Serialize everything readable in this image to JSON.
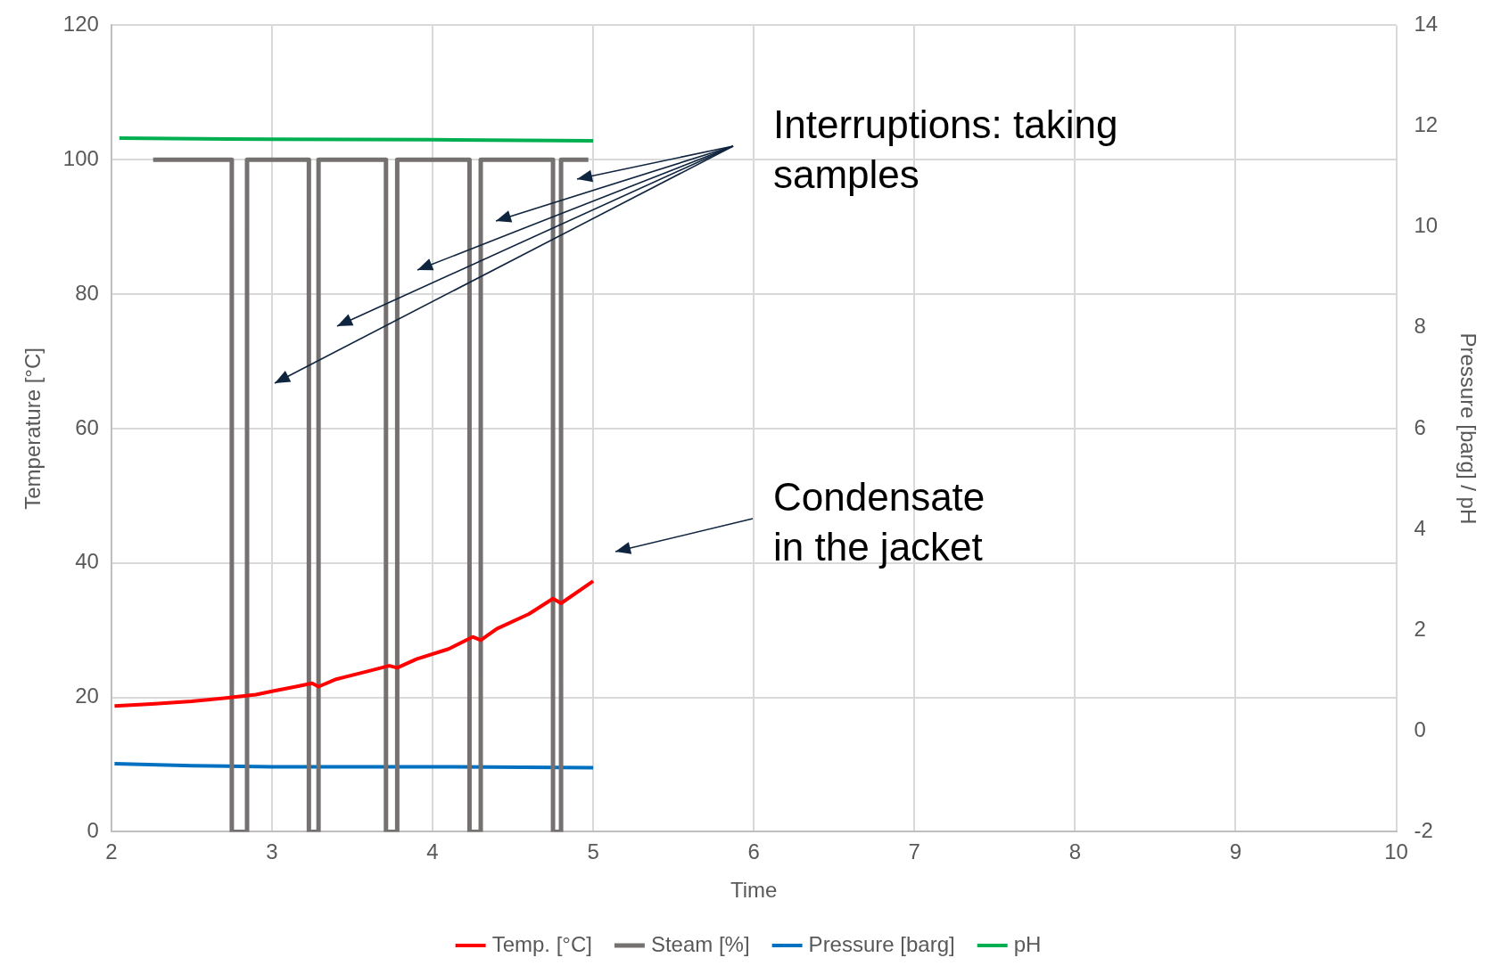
{
  "chart_data": {
    "type": "line",
    "xlabel": "Time",
    "ylabel": "Temperature [°C]",
    "y2label": "Pressure [barg] / pH",
    "xlim": [
      2,
      10
    ],
    "xticks": [
      2,
      3,
      4,
      5,
      6,
      7,
      8,
      9,
      10
    ],
    "ylim": [
      0,
      120
    ],
    "yticks": [
      0,
      20,
      40,
      60,
      80,
      100,
      120
    ],
    "y2lim": [
      -2,
      14
    ],
    "y2ticks": [
      -2,
      0,
      2,
      4,
      6,
      8,
      10,
      12,
      14
    ],
    "grid": true,
    "legend": "bottom",
    "marker": "none",
    "series": [
      {
        "name": "Temp. [°C]",
        "color": "#ff0000",
        "type": "line",
        "x": [
          2.02,
          2.25,
          2.5,
          2.75,
          2.9,
          3.0,
          3.15,
          3.25,
          3.29,
          3.4,
          3.6,
          3.73,
          3.78,
          3.9,
          4.1,
          4.25,
          4.3,
          4.4,
          4.6,
          4.75,
          4.8,
          5.0
        ],
        "values": [
          18.7,
          19.0,
          19.4,
          20.0,
          20.4,
          20.9,
          21.6,
          22.1,
          21.6,
          22.7,
          23.9,
          24.7,
          24.4,
          25.7,
          27.2,
          29.0,
          28.5,
          30.2,
          32.4,
          34.7,
          34.0,
          37.3
        ]
      },
      {
        "name": "Steam [%]",
        "color": "#767171",
        "type": "step",
        "x": [
          2.26,
          2.75,
          2.845,
          3.23,
          3.29,
          3.71,
          3.78,
          4.23,
          4.3,
          4.75,
          4.8,
          4.97
        ],
        "values": [
          100,
          0,
          100,
          0,
          100,
          0,
          100,
          0,
          100,
          0,
          100,
          100
        ]
      },
      {
        "name": "Pressure [barg]",
        "color": "#0070c0",
        "type": "line",
        "axis": "y2",
        "x": [
          2.02,
          2.5,
          3.0,
          4.0,
          5.0
        ],
        "values": [
          -0.65,
          -0.69,
          -0.71,
          -0.71,
          -0.73
        ]
      },
      {
        "name": "pH",
        "color": "#00b050",
        "type": "line",
        "axis": "y2",
        "x": [
          2.05,
          3.0,
          4.0,
          5.0
        ],
        "values": [
          11.76,
          11.74,
          11.73,
          11.71
        ]
      }
    ],
    "annotations": [
      "Interruptions: taking samples",
      "Condensate in the jacket"
    ]
  }
}
